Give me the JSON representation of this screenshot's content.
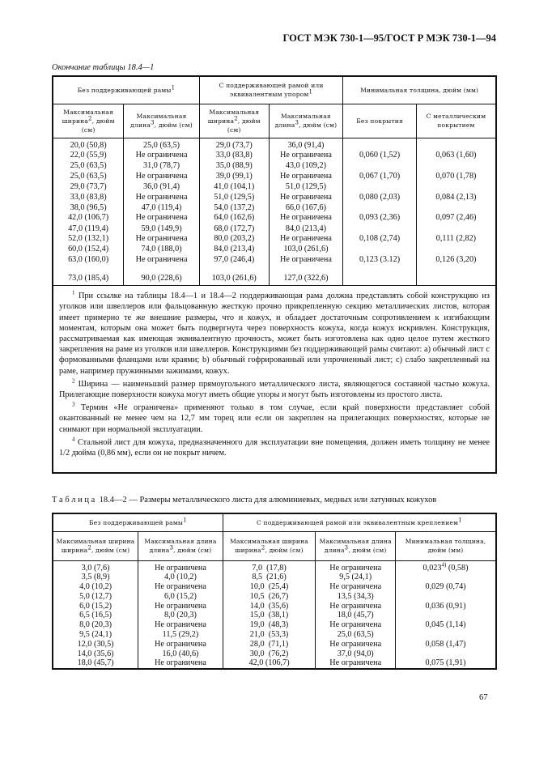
{
  "header": "ГОСТ МЭК 730-1—95/ГОСТ Р МЭК 730-1—94",
  "continuation": "Окончание таблицы 18.4—1",
  "table1": {
    "group1": "Без поддерживающей рамы",
    "group2": "С поддерживающей рамой или эквивалентным упором",
    "group3": "Минимальная толщина, дюйм (мм)",
    "cols": [
      "Максимальная ширина",
      "Максимальная длина",
      "Максимальная ширина",
      "Максимальная длина",
      "Без покрытия",
      "С металлическим покрытием"
    ],
    "col_units": [
      ", дюйм (см)",
      ", дюйм (см)",
      ", дюйм (см)",
      ", дюйм (см)"
    ],
    "col1": [
      "20,0 (50,8)",
      "22,0 (55,9)",
      "25,0 (63,5)",
      "25,0 (63,5)",
      "29,0 (73,7)",
      "33,0 (83,8)",
      "38,0 (96,5)",
      "42,0 (106,7)",
      "47,0 (119,4)",
      "52,0 (132,1)",
      "60,0 (152,4)",
      "63,0 (160,0)",
      "73,0 (185,4)"
    ],
    "col2": [
      "25,0 (63,5)",
      "Не ограничена",
      "31,0 (78,7)",
      "Не ограничена",
      "36,0 (91,4)",
      "Не ограничена",
      "47,0 (119,4)",
      "Не ограничена",
      "59,0 (149,9)",
      "Не ограничена",
      "74,0 (188,0)",
      "Не ограничена",
      "90,0 (228,6)"
    ],
    "col3": [
      "29,0 (73,7)",
      "33,0 (83,8)",
      "35,0 (88,9)",
      "39,0 (99,1)",
      "41,0 (104,1)",
      "51,0 (129,5)",
      "54,0 (137,2)",
      "64,0 (162,6)",
      "68,0 (172,7)",
      "80,0 (203,2)",
      "84,0 (213,4)",
      "97,0 (246,4)",
      "103,0 (261,6)"
    ],
    "col4": [
      "36,0 (91,4)",
      "Не ограничена",
      "43,0 (109,2)",
      "Не ограничена",
      "51,0 (129,5)",
      "Не ограничена",
      "66,0 (167,6)",
      "Не ограничена",
      "84,0 (213,4)",
      "Не ограничена",
      "103,0 (261,6)",
      "Не ограничена",
      "127,0 (322,6)"
    ],
    "col5": [
      "",
      "0,060 (1,52)",
      "",
      "0,067 (1,70)",
      "",
      "0,080 (2,03)",
      "",
      "0,093 (2,36)",
      "",
      "0,108 (2,74)",
      "",
      "0,123 (3.12)",
      ""
    ],
    "col6": [
      "",
      "0,063 (1,60)",
      "",
      "0,070 (1,78)",
      "",
      "0,084 (2,13)",
      "",
      "0,097 (2,46)",
      "",
      "0,111 (2,82)",
      "",
      "0,126 (3,20)",
      ""
    ],
    "notes": [
      "При ссылке на таблицы 18.4—1 и 18.4—2 поддерживающая рама должна представлять собой конструкцию из уголков или швеллеров или фальцованную жесткую прочно прикрепленную секцию металлических листов, которая имеет примерно те же внешние размеры, что и кожух, и обладает достаточным сопротивлением к изгибающим моментам, которым она может быть подвергнута через поверхность кожуха, когда кожух искривлен. Конструкция, рассматриваемая как имеющая эквивалентную прочность, может быть изготовлена как одно целое путем жесткого закрепления на раме из уголков или швеллеров. Конструкциями без поддерживающей рамы считают: a) обычный лист с формованными фланцами или краями; b) обычный гофрированный или упрочненный лист; c) слабо закрепленный на раме, например пружинными зажимами, кожух.",
      "Ширина — наименьший размер прямоугольного металлического листа, являющегося составной частью кожуха. Прилегающие поверхности кожуха могут иметь общие упоры и могут быть изготовлены из простого листа.",
      "Термин «Не ограничена» применяют только в том случае, если край поверхности представляет собой окантованный не менее чем на 12,7 мм торец или если он закреплен на прилегающих поверхностях, которые не снимают при нормальной эксплуатации.",
      "Стальной лист для кожуха, предназначенного для эксплуатации вне помещения, должен иметь толщину не менее 1/2 дюйма (0,86 мм), если он не покрыт ничем."
    ]
  },
  "table2": {
    "label": "Т а б л и ц а",
    "title": "18.4—2 — Размеры металлического листа для алюминиевых, медных или латунных кожухов",
    "group1": "Без поддерживающей рамы",
    "group2": "С поддерживающей рамой или эквивалентным креплением",
    "cols": [
      "Максимальная ширина",
      "Максимальная длина",
      "Максимальная ширина",
      "Максимальная длина",
      "Минимальная толщина, дюйм (мм)"
    ],
    "col1": [
      "3,0 (7,6)",
      "3,5 (8,9)",
      "4,0 (10,2)",
      "5,0 (12,7)",
      "6,0 (15,2)",
      "6,5 (16,5)",
      "8,0 (20,3)",
      "9,5 (24,1)",
      "12,0 (30,5)",
      "14,0 (35,6)",
      "18,0 (45,7)"
    ],
    "col2": [
      "Не ограничена",
      "4,0 (10,2)",
      "Не ограничена",
      "6,0 (15,2)",
      "Не ограничена",
      "8,0 (20,3)",
      "Не ограничена",
      "11,5 (29,2)",
      "Не ограничена",
      "16,0 (40,6)",
      "Не ограничена"
    ],
    "col3": [
      "7,0  (17,8)",
      "8,5  (21,6)",
      "10,0  (25,4)",
      "10,5  (26,7)",
      "14,0  (35,6)",
      "15,0  (38,1)",
      "19,0  (48,3)",
      "21,0  (53,3)",
      "28,0  (71,1)",
      "30,0  (76,2)",
      "42,0 (106,7)"
    ],
    "col4": [
      "Не ограничена",
      "9,5 (24,1)",
      "Не ограничена",
      "13,5 (34,3)",
      "Не ограничена",
      "18,0 (45,7)",
      "Не ограничена",
      "25,0 (63,5)",
      "Не ограничена",
      "37,0 (94,0)",
      "Не ограничена"
    ],
    "col5": [
      "0,023",
      "",
      "0,029 (0,74)",
      "",
      "0,036 (0,91)",
      "",
      "0,045 (1,14)",
      "",
      "0,058 (1,47)",
      "",
      "0,075 (1,91)"
    ],
    "col5_first_sup": "4)",
    "col5_first_rest": " (0,58)"
  },
  "page_number": "67"
}
